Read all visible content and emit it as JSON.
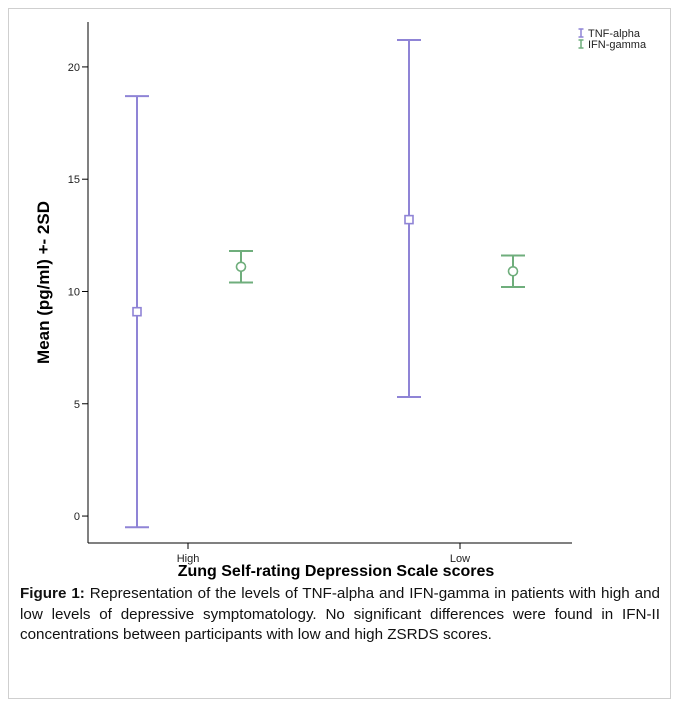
{
  "figure": {
    "caption_label": "Figure 1:",
    "caption_text": " Representation of the levels of TNF-alpha and IFN-gamma in patients with high and low levels of depressive symptomatology. No significant differences were found in IFN-II concentrations between participants with low and high ZSRDS scores."
  },
  "chart_data": {
    "type": "errorbar",
    "xlabel": "Zung Self-rating Depression Scale scores",
    "ylabel": "Mean (pg/ml) +- 2SD",
    "categories": [
      "High",
      "Low"
    ],
    "ylim": [
      -1.2,
      22
    ],
    "yticks": [
      0,
      5,
      10,
      15,
      20
    ],
    "grid": false,
    "legend_position": "top-right",
    "series": [
      {
        "name": "TNF-alpha",
        "color": "#8f84d6",
        "marker": "square",
        "values": [
          {
            "category": "High",
            "mean": 9.1,
            "lower": -0.5,
            "upper": 18.7
          },
          {
            "category": "Low",
            "mean": 13.2,
            "lower": 5.3,
            "upper": 21.2
          }
        ]
      },
      {
        "name": "IFN-gamma",
        "color": "#6fae7c",
        "marker": "circle",
        "values": [
          {
            "category": "High",
            "mean": 11.1,
            "lower": 10.4,
            "upper": 11.8
          },
          {
            "category": "Low",
            "mean": 10.9,
            "lower": 10.2,
            "upper": 11.6
          }
        ]
      }
    ]
  }
}
